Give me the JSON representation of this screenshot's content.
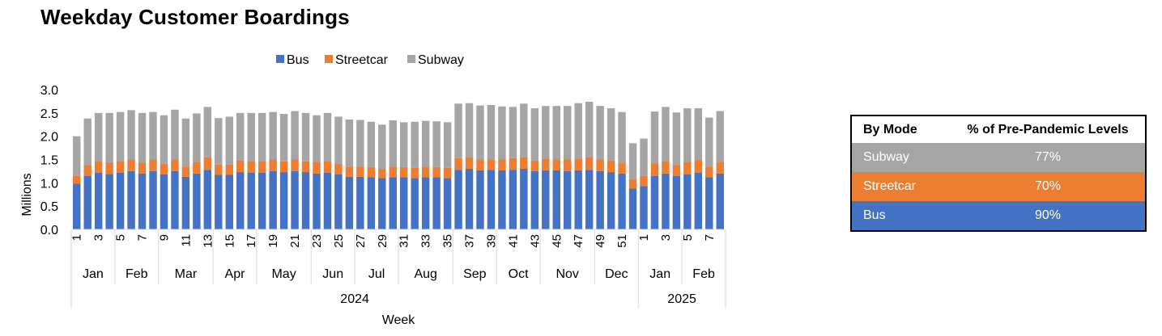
{
  "title": "Weekday Customer Boardings",
  "colors": {
    "bus": "#4472C4",
    "streetcar": "#ED7D31",
    "subway": "#A5A5A5"
  },
  "chart_data": {
    "type": "bar",
    "stacked": true,
    "title": "Weekday Customer Boardings",
    "xlabel": "Week",
    "ylabel": "Millions",
    "ylim": [
      0,
      3.0
    ],
    "yticks": [
      "0.0",
      "0.5",
      "1.0",
      "1.5",
      "2.0",
      "2.5",
      "3.0"
    ],
    "legend_position": "top",
    "grid": false,
    "x": [
      1,
      2,
      3,
      4,
      5,
      6,
      7,
      8,
      9,
      10,
      11,
      12,
      13,
      14,
      15,
      16,
      17,
      18,
      19,
      20,
      21,
      22,
      23,
      24,
      25,
      26,
      27,
      28,
      29,
      30,
      31,
      32,
      33,
      34,
      35,
      36,
      37,
      38,
      39,
      40,
      41,
      42,
      43,
      44,
      45,
      46,
      47,
      48,
      49,
      50,
      51,
      52,
      1,
      2,
      3,
      4,
      5,
      6,
      7,
      8
    ],
    "x_tick_labels": [
      "1",
      "3",
      "5",
      "7",
      "9",
      "11",
      "13",
      "15",
      "17",
      "19",
      "21",
      "23",
      "25",
      "27",
      "29",
      "31",
      "33",
      "35",
      "37",
      "39",
      "41",
      "43",
      "45",
      "47",
      "49",
      "51",
      "1",
      "3",
      "5",
      "7"
    ],
    "month_labels": [
      {
        "label": "Jan",
        "start": 0,
        "end": 3
      },
      {
        "label": "Feb",
        "start": 4,
        "end": 7
      },
      {
        "label": "Mar",
        "start": 8,
        "end": 12
      },
      {
        "label": "Apr",
        "start": 13,
        "end": 16
      },
      {
        "label": "May",
        "start": 17,
        "end": 21
      },
      {
        "label": "Jun",
        "start": 22,
        "end": 25
      },
      {
        "label": "Jul",
        "start": 26,
        "end": 29
      },
      {
        "label": "Aug",
        "start": 30,
        "end": 34
      },
      {
        "label": "Sep",
        "start": 35,
        "end": 38
      },
      {
        "label": "Oct",
        "start": 39,
        "end": 42
      },
      {
        "label": "Nov",
        "start": 43,
        "end": 47
      },
      {
        "label": "Dec",
        "start": 48,
        "end": 51
      },
      {
        "label": "Jan",
        "start": 52,
        "end": 55
      },
      {
        "label": "Feb",
        "start": 56,
        "end": 59
      }
    ],
    "year_labels": [
      {
        "label": "2024",
        "start": 0,
        "end": 51
      },
      {
        "label": "2025",
        "start": 52,
        "end": 59
      }
    ],
    "series": [
      {
        "name": "Bus",
        "values": [
          0.98,
          1.15,
          1.22,
          1.19,
          1.22,
          1.25,
          1.2,
          1.25,
          1.18,
          1.25,
          1.13,
          1.2,
          1.28,
          1.17,
          1.17,
          1.23,
          1.22,
          1.22,
          1.25,
          1.23,
          1.25,
          1.23,
          1.2,
          1.22,
          1.18,
          1.13,
          1.13,
          1.12,
          1.1,
          1.12,
          1.12,
          1.1,
          1.12,
          1.12,
          1.1,
          1.28,
          1.3,
          1.27,
          1.28,
          1.27,
          1.28,
          1.3,
          1.25,
          1.27,
          1.27,
          1.25,
          1.27,
          1.28,
          1.25,
          1.23,
          1.2,
          0.88,
          0.93,
          1.15,
          1.2,
          1.15,
          1.18,
          1.22,
          1.12,
          1.2
        ]
      },
      {
        "name": "Streetcar",
        "values": [
          0.17,
          0.23,
          0.25,
          0.25,
          0.25,
          0.25,
          0.23,
          0.25,
          0.23,
          0.25,
          0.22,
          0.25,
          0.27,
          0.22,
          0.22,
          0.25,
          0.25,
          0.25,
          0.25,
          0.23,
          0.25,
          0.23,
          0.25,
          0.25,
          0.23,
          0.22,
          0.22,
          0.22,
          0.2,
          0.23,
          0.22,
          0.22,
          0.23,
          0.22,
          0.22,
          0.25,
          0.25,
          0.23,
          0.22,
          0.23,
          0.25,
          0.25,
          0.23,
          0.25,
          0.23,
          0.25,
          0.25,
          0.27,
          0.25,
          0.25,
          0.22,
          0.2,
          0.22,
          0.27,
          0.27,
          0.23,
          0.27,
          0.27,
          0.23,
          0.25
        ]
      },
      {
        "name": "Subway",
        "values": [
          0.85,
          1.0,
          1.03,
          1.06,
          1.05,
          1.06,
          1.07,
          1.02,
          1.04,
          1.07,
          1.03,
          1.04,
          1.08,
          1.0,
          1.03,
          1.02,
          1.03,
          1.03,
          1.02,
          1.02,
          1.04,
          1.04,
          1.0,
          1.03,
          1.01,
          1.01,
          1.0,
          0.97,
          0.95,
          0.99,
          0.96,
          0.99,
          0.98,
          0.98,
          0.98,
          1.17,
          1.16,
          1.16,
          1.17,
          1.14,
          1.1,
          1.15,
          1.12,
          1.13,
          1.15,
          1.15,
          1.19,
          1.19,
          1.15,
          1.12,
          1.1,
          0.77,
          0.8,
          1.11,
          1.16,
          1.13,
          1.15,
          1.11,
          1.05,
          1.09
        ]
      }
    ]
  },
  "table": {
    "headers": [
      "By Mode",
      "% of Pre-Pandemic Levels"
    ],
    "rows": [
      {
        "mode": "Subway",
        "pct": "77%",
        "color": "#A5A5A5"
      },
      {
        "mode": "Streetcar",
        "pct": "70%",
        "color": "#ED7D31"
      },
      {
        "mode": "Bus",
        "pct": "90%",
        "color": "#4472C4"
      }
    ]
  }
}
